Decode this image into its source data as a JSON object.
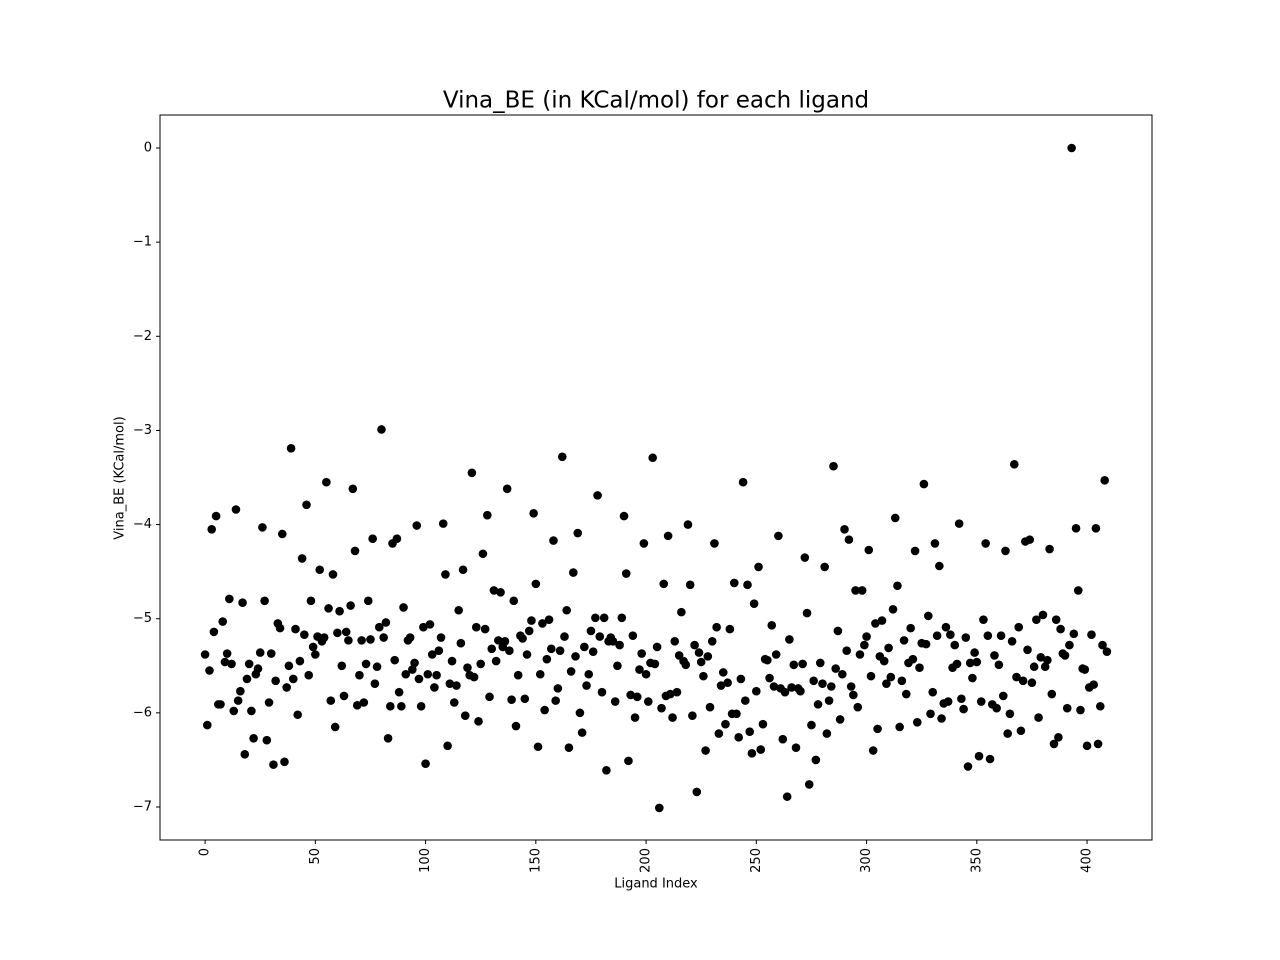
{
  "chart_data": {
    "type": "scatter",
    "title": "Vina_BE (in KCal/mol) for each ligand",
    "xlabel": "Ligand Index",
    "ylabel": "Vina_BE (KCal/mol)",
    "color": "#000000",
    "xlim": [
      -20.45,
      429.45
    ],
    "ylim": [
      -7.3505,
      0.3505
    ],
    "xticks": [
      0,
      50,
      100,
      150,
      200,
      250,
      300,
      350,
      400
    ],
    "yticks": [
      {
        "value": 0,
        "label": "0"
      },
      {
        "value": -1,
        "label": "−1"
      },
      {
        "value": -2,
        "label": "−2"
      },
      {
        "value": -3,
        "label": "−3"
      },
      {
        "value": -4,
        "label": "−4"
      },
      {
        "value": -5,
        "label": "−5"
      },
      {
        "value": -6,
        "label": "−6"
      },
      {
        "value": -7,
        "label": "−7"
      }
    ],
    "x": [
      0,
      1,
      2,
      3,
      4,
      5,
      6,
      7,
      8,
      9,
      10,
      11,
      12,
      13,
      14,
      15,
      16,
      17,
      18,
      19,
      20,
      21,
      22,
      23,
      24,
      25,
      26,
      27,
      28,
      29,
      30,
      31,
      32,
      33,
      34,
      35,
      36,
      37,
      38,
      39,
      40,
      41,
      42,
      43,
      44,
      45,
      46,
      47,
      48,
      49,
      50,
      51,
      52,
      53,
      54,
      55,
      56,
      57,
      58,
      59,
      60,
      61,
      62,
      63,
      64,
      65,
      66,
      67,
      68,
      69,
      70,
      71,
      72,
      73,
      74,
      75,
      76,
      77,
      78,
      79,
      80,
      81,
      82,
      83,
      84,
      85,
      86,
      87,
      88,
      89,
      90,
      91,
      92,
      93,
      94,
      95,
      96,
      97,
      98,
      99,
      100,
      101,
      102,
      103,
      104,
      105,
      106,
      107,
      108,
      109,
      110,
      111,
      112,
      113,
      114,
      115,
      116,
      117,
      118,
      119,
      120,
      121,
      122,
      123,
      124,
      125,
      126,
      127,
      128,
      129,
      130,
      131,
      132,
      133,
      134,
      135,
      136,
      137,
      138,
      139,
      140,
      141,
      142,
      143,
      144,
      145,
      146,
      147,
      148,
      149,
      150,
      151,
      152,
      153,
      154,
      155,
      156,
      157,
      158,
      159,
      160,
      161,
      162,
      163,
      164,
      165,
      166,
      167,
      168,
      169,
      170,
      171,
      172,
      173,
      174,
      175,
      176,
      177,
      178,
      179,
      180,
      181,
      182,
      183,
      184,
      185,
      186,
      187,
      188,
      189,
      190,
      191,
      192,
      193,
      194,
      195,
      196,
      197,
      198,
      199,
      200,
      201,
      202,
      203,
      204,
      205,
      206,
      207,
      208,
      209,
      210,
      211,
      212,
      213,
      214,
      215,
      216,
      217,
      218,
      219,
      220,
      221,
      222,
      223,
      224,
      225,
      226,
      227,
      228,
      229,
      230,
      231,
      232,
      233,
      234,
      235,
      236,
      237,
      238,
      239,
      240,
      241,
      242,
      243,
      244,
      245,
      246,
      247,
      248,
      249,
      250,
      251,
      252,
      253,
      254,
      255,
      256,
      257,
      258,
      259,
      260,
      261,
      262,
      263,
      264,
      265,
      266,
      267,
      268,
      269,
      270,
      271,
      272,
      273,
      274,
      275,
      276,
      277,
      278,
      279,
      280,
      281,
      282,
      283,
      284,
      285,
      286,
      287,
      288,
      289,
      290,
      291,
      292,
      293,
      294,
      295,
      296,
      297,
      298,
      299,
      300,
      301,
      302,
      303,
      304,
      305,
      306,
      307,
      308,
      309,
      310,
      311,
      312,
      313,
      314,
      315,
      316,
      317,
      318,
      319,
      320,
      321,
      322,
      323,
      324,
      325,
      326,
      327,
      328,
      329,
      330,
      331,
      332,
      333,
      334,
      335,
      336,
      337,
      338,
      339,
      340,
      341,
      342,
      343,
      344,
      345,
      346,
      347,
      348,
      349,
      350,
      351,
      352,
      353,
      354,
      355,
      356,
      357,
      358,
      359,
      360,
      361,
      362,
      363,
      364,
      365,
      366,
      367,
      368,
      369,
      370,
      371,
      372,
      373,
      374,
      375,
      376,
      377,
      378,
      379,
      380,
      381,
      382,
      383,
      384,
      385,
      386,
      387,
      388,
      389,
      390,
      391,
      392,
      393,
      394,
      395,
      396,
      397,
      398,
      399,
      400,
      401,
      402,
      403,
      404,
      405,
      406,
      407,
      408,
      409
    ],
    "values": [
      -5.38,
      -6.13,
      -5.55,
      -4.05,
      -5.14,
      -3.91,
      -5.91,
      -5.91,
      -5.03,
      -5.46,
      -5.37,
      -4.79,
      -5.48,
      -5.98,
      -3.84,
      -5.87,
      -5.77,
      -4.83,
      -6.44,
      -5.64,
      -5.48,
      -5.98,
      -6.27,
      -5.59,
      -5.53,
      -5.36,
      -4.03,
      -4.81,
      -6.29,
      -5.89,
      -5.37,
      -6.55,
      -5.66,
      -5.05,
      -5.1,
      -4.1,
      -6.52,
      -5.73,
      -5.5,
      -3.19,
      -5.64,
      -5.11,
      -6.02,
      -5.45,
      -4.36,
      -5.17,
      -3.79,
      -5.6,
      -4.81,
      -5.3,
      -5.38,
      -5.19,
      -4.48,
      -5.24,
      -5.2,
      -3.55,
      -4.89,
      -5.87,
      -4.53,
      -6.15,
      -5.15,
      -4.92,
      -5.5,
      -5.82,
      -5.14,
      -5.23,
      -4.86,
      -3.62,
      -4.28,
      -5.92,
      -5.6,
      -5.23,
      -5.89,
      -5.48,
      -4.81,
      -5.22,
      -4.15,
      -5.69,
      -5.51,
      -5.09,
      -2.99,
      -5.2,
      -5.04,
      -6.27,
      -5.93,
      -4.2,
      -5.44,
      -4.15,
      -5.78,
      -5.93,
      -4.88,
      -5.59,
      -5.23,
      -5.2,
      -5.54,
      -5.47,
      -4.01,
      -5.64,
      -5.93,
      -5.09,
      -6.54,
      -5.59,
      -5.06,
      -5.38,
      -5.73,
      -5.6,
      -5.34,
      -5.2,
      -3.99,
      -4.53,
      -6.35,
      -5.69,
      -5.45,
      -5.89,
      -5.71,
      -4.91,
      -5.26,
      -4.48,
      -6.03,
      -5.52,
      -5.6,
      -3.45,
      -5.62,
      -5.09,
      -6.09,
      -5.48,
      -4.31,
      -5.11,
      -3.9,
      -5.83,
      -5.32,
      -4.7,
      -5.45,
      -5.23,
      -4.72,
      -5.3,
      -5.24,
      -3.62,
      -5.34,
      -5.86,
      -4.81,
      -6.14,
      -5.6,
      -5.18,
      -5.21,
      -5.85,
      -5.38,
      -5.13,
      -5.02,
      -3.88,
      -4.63,
      -6.36,
      -5.59,
      -5.05,
      -5.97,
      -5.43,
      -5.01,
      -5.32,
      -4.17,
      -5.87,
      -5.74,
      -5.34,
      -3.28,
      -5.19,
      -4.91,
      -6.37,
      -5.56,
      -4.51,
      -5.4,
      -4.09,
      -6.0,
      -6.21,
      -5.3,
      -5.71,
      -5.59,
      -5.13,
      -5.35,
      -4.99,
      -3.69,
      -5.19,
      -5.78,
      -4.99,
      -6.61,
      -5.24,
      -5.2,
      -5.24,
      -5.88,
      -5.5,
      -5.28,
      -4.99,
      -3.91,
      -4.52,
      -6.51,
      -5.81,
      -5.18,
      -6.05,
      -5.83,
      -5.54,
      -5.37,
      -4.2,
      -5.59,
      -5.88,
      -5.47,
      -3.29,
      -5.48,
      -5.3,
      -7.01,
      -5.95,
      -4.63,
      -5.82,
      -4.12,
      -5.8,
      -6.05,
      -5.24,
      -5.78,
      -5.39,
      -4.93,
      -5.45,
      -5.49,
      -4.0,
      -4.64,
      -6.03,
      -5.28,
      -6.84,
      -5.36,
      -5.46,
      -5.61,
      -6.4,
      -5.4,
      -5.94,
      -5.24,
      -4.2,
      -5.09,
      -6.22,
      -5.71,
      -5.57,
      -6.12,
      -5.68,
      -5.11,
      -6.01,
      -4.62,
      -6.01,
      -6.26,
      -5.64,
      -3.55,
      -5.87,
      -4.64,
      -6.2,
      -6.43,
      -4.84,
      -5.77,
      -4.45,
      -6.39,
      -6.12,
      -5.43,
      -5.44,
      -5.63,
      -5.07,
      -5.72,
      -5.38,
      -4.12,
      -5.74,
      -6.28,
      -5.78,
      -6.89,
      -5.22,
      -5.73,
      -5.49,
      -6.37,
      -5.74,
      -5.77,
      -5.48,
      -4.35,
      -4.94,
      -6.76,
      -6.13,
      -5.66,
      -6.5,
      -5.91,
      -5.47,
      -5.69,
      -4.45,
      -6.22,
      -5.87,
      -5.72,
      -3.38,
      -5.53,
      -5.13,
      -6.07,
      -5.59,
      -4.05,
      -5.34,
      -4.16,
      -5.72,
      -5.81,
      -4.7,
      -5.94,
      -5.38,
      -4.7,
      -5.28,
      -5.19,
      -4.27,
      -5.61,
      -6.4,
      -5.05,
      -6.17,
      -5.4,
      -5.02,
      -5.45,
      -5.69,
      -5.31,
      -5.62,
      -4.9,
      -3.93,
      -4.65,
      -6.15,
      -5.66,
      -5.23,
      -5.8,
      -5.47,
      -5.1,
      -5.43,
      -4.28,
      -6.1,
      -5.52,
      -5.26,
      -3.57,
      -5.27,
      -4.97,
      -6.01,
      -5.78,
      -4.2,
      -5.18,
      -4.44,
      -6.06,
      -5.9,
      -5.09,
      -5.88,
      -5.17,
      -5.52,
      -5.28,
      -5.48,
      -3.99,
      -5.85,
      -5.96,
      -5.2,
      -6.57,
      -5.47,
      -5.63,
      -5.36,
      -5.46,
      -6.46,
      -5.88,
      -5.01,
      -4.2,
      -5.18,
      -6.49,
      -5.91,
      -5.39,
      -5.95,
      -5.49,
      -5.18,
      -5.82,
      -4.28,
      -6.22,
      -6.01,
      -5.24,
      -3.36,
      -5.62,
      -5.09,
      -6.19,
      -5.66,
      -4.18,
      -5.33,
      -4.16,
      -5.68,
      -5.51,
      -5.01,
      -6.05,
      -5.41,
      -4.96,
      -5.51,
      -5.44,
      -4.26,
      -5.8,
      -6.33,
      -5.01,
      -6.26,
      -5.11,
      -5.37,
      -5.39,
      -5.95,
      -5.28,
      0,
      -5.16,
      -4.04,
      -4.7,
      -5.97,
      -5.53,
      -5.54,
      -6.35,
      -5.73,
      -5.17,
      -5.7,
      -4.04,
      -6.33,
      -5.93,
      -5.28,
      -3.53,
      -5.35
    ]
  }
}
